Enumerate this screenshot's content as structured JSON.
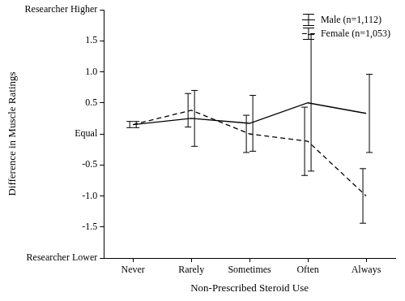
{
  "chart_data": {
    "type": "line",
    "x_label": "Non-Prescribed Steroid Use",
    "y_label": "Difference in Muscle Ratings",
    "categories": [
      "Never",
      "Rarely",
      "Sometimes",
      "Often",
      "Always"
    ],
    "series": [
      {
        "name": "Male (n=1,112)",
        "color": "#000000",
        "line_style": "solid",
        "marker": "none",
        "values": [
          0.15,
          0.25,
          0.17,
          0.5,
          0.33
        ],
        "error": [
          0.05,
          0.45,
          0.45,
          1.1,
          0.63
        ]
      },
      {
        "name": "Female (n=1,053)",
        "color": "#000000",
        "line_style": "dashed",
        "marker": "none",
        "values": [
          0.15,
          0.38,
          0.0,
          -0.12,
          -1.0
        ],
        "error": [
          0.05,
          0.27,
          0.3,
          0.55,
          0.44
        ]
      }
    ],
    "ylim": [
      -2,
      2
    ],
    "yticks": [
      {
        "value": -2,
        "label": "Researcher Lower"
      },
      -1.5,
      {
        "value": -1,
        "label": "-1.0"
      },
      -0.5,
      {
        "value": 0,
        "label": "Equal"
      },
      0.5,
      {
        "value": 1,
        "label": "1.0"
      },
      1.5,
      {
        "value": 2,
        "label": "Researcher Higher"
      }
    ],
    "grid": false,
    "legend": "upper right"
  }
}
